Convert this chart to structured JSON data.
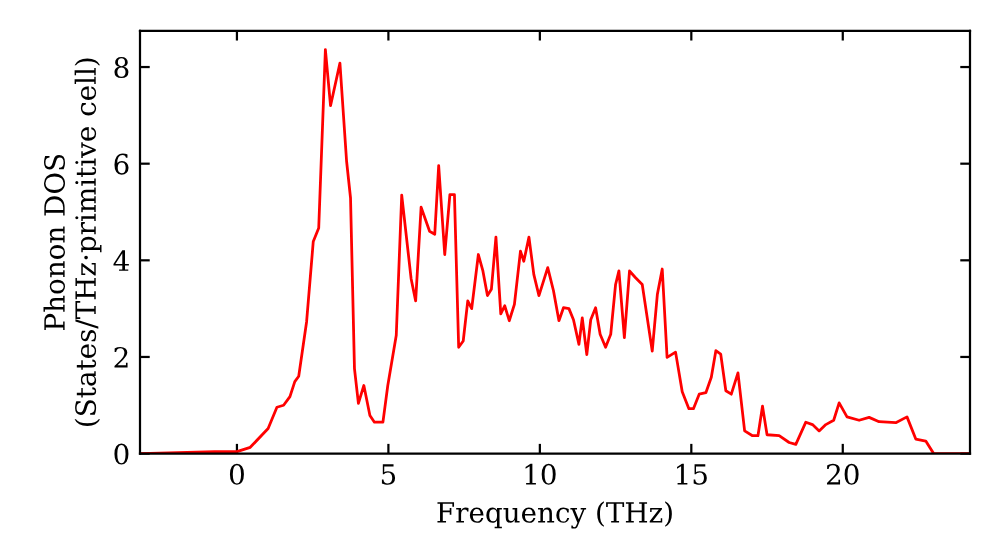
{
  "chart_data": {
    "type": "line",
    "xlabel": "Frequency (THz)",
    "ylabel": "Phonon DOS\n(States/THz·primitive cell)",
    "xlim": [
      -3.2,
      24.2
    ],
    "ylim": [
      0,
      8.75
    ],
    "xticks": [
      0,
      5,
      10,
      15,
      20
    ],
    "yticks": [
      0,
      2,
      4,
      6,
      8
    ],
    "grid": false,
    "legend": false,
    "marker": "none",
    "line_style": "solid",
    "series": [
      {
        "color": "#ff0000",
        "x": [
          -3.16,
          -0.74,
          0.0,
          0.44,
          1.03,
          1.32,
          1.54,
          1.75,
          1.91,
          2.04,
          2.3,
          2.52,
          2.7,
          2.92,
          3.09,
          3.4,
          3.62,
          3.75,
          3.88,
          4.01,
          4.19,
          4.39,
          4.54,
          4.82,
          4.98,
          5.26,
          5.44,
          5.75,
          5.9,
          6.08,
          6.36,
          6.53,
          6.66,
          6.86,
          7.03,
          7.18,
          7.32,
          7.47,
          7.62,
          7.75,
          7.97,
          8.12,
          8.27,
          8.4,
          8.55,
          8.71,
          8.84,
          8.99,
          9.16,
          9.36,
          9.47,
          9.64,
          9.8,
          9.97,
          10.26,
          10.45,
          10.63,
          10.78,
          10.96,
          11.11,
          11.29,
          11.4,
          11.55,
          11.68,
          11.84,
          11.99,
          12.17,
          12.34,
          12.5,
          12.61,
          12.79,
          12.96,
          13.16,
          13.38,
          13.71,
          13.88,
          14.04,
          14.2,
          14.48,
          14.7,
          14.92,
          15.07,
          15.26,
          15.48,
          15.66,
          15.81,
          15.97,
          16.14,
          16.32,
          16.54,
          16.76,
          17.02,
          17.2,
          17.35,
          17.5,
          17.9,
          18.23,
          18.45,
          18.78,
          19.0,
          19.22,
          19.44,
          19.7,
          19.88,
          20.14,
          20.54,
          20.87,
          21.2,
          21.75,
          22.12,
          22.41,
          22.74,
          23.0,
          24.2
        ],
        "values": [
          0,
          0.04,
          0.04,
          0.13,
          0.52,
          0.96,
          1.0,
          1.18,
          1.49,
          1.6,
          2.73,
          4.39,
          4.67,
          8.36,
          7.2,
          8.08,
          6.05,
          5.29,
          1.76,
          1.04,
          1.41,
          0.79,
          0.65,
          0.65,
          1.41,
          2.45,
          5.35,
          3.62,
          3.16,
          5.1,
          4.6,
          4.54,
          5.96,
          4.12,
          5.36,
          5.36,
          2.2,
          2.33,
          3.16,
          3.0,
          4.12,
          3.78,
          3.27,
          3.4,
          4.48,
          2.89,
          3.06,
          2.75,
          3.09,
          4.19,
          3.98,
          4.48,
          3.71,
          3.27,
          3.85,
          3.37,
          2.75,
          3.02,
          3.0,
          2.77,
          2.26,
          2.81,
          2.05,
          2.77,
          3.02,
          2.47,
          2.2,
          2.47,
          3.5,
          3.78,
          2.4,
          3.78,
          3.64,
          3.5,
          2.12,
          3.3,
          3.82,
          1.99,
          2.1,
          1.28,
          0.93,
          0.93,
          1.23,
          1.26,
          1.58,
          2.13,
          2.06,
          1.3,
          1.23,
          1.67,
          0.47,
          0.37,
          0.37,
          0.98,
          0.39,
          0.37,
          0.23,
          0.19,
          0.65,
          0.6,
          0.47,
          0.6,
          0.69,
          1.05,
          0.76,
          0.69,
          0.75,
          0.66,
          0.64,
          0.76,
          0.3,
          0.26,
          0.0,
          0.0
        ]
      }
    ]
  }
}
